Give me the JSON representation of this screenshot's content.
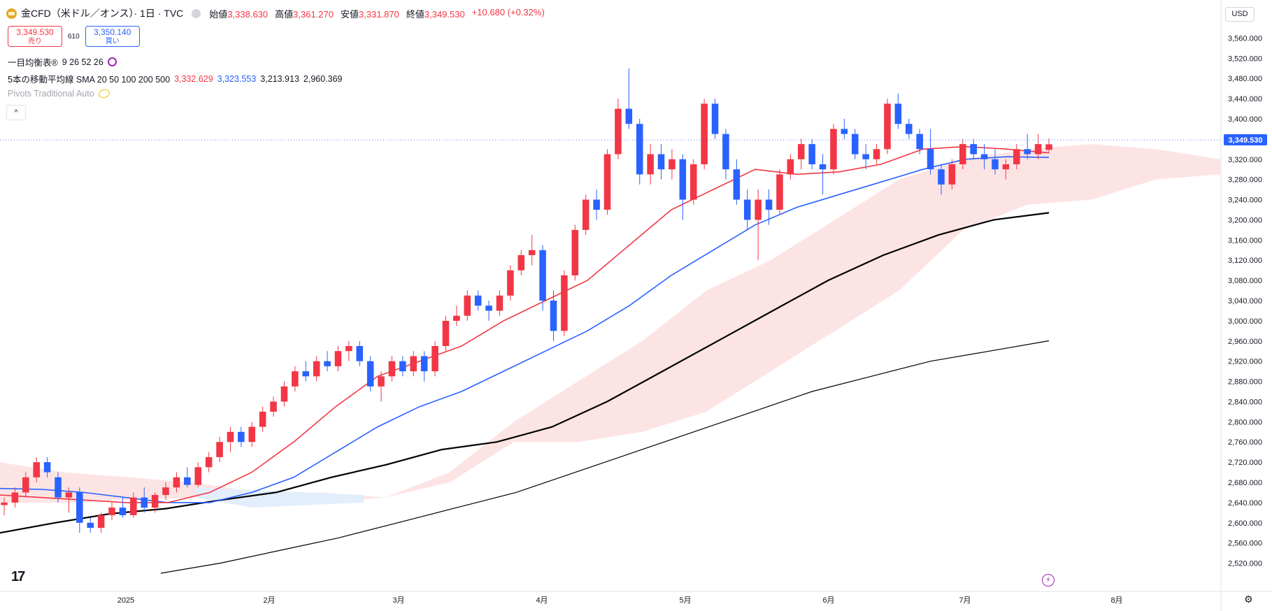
{
  "header": {
    "title": "金CFD（米ドル／オンス）· 1日 · TVC",
    "ohlc": [
      {
        "label": "始値",
        "value": "3,338.630"
      },
      {
        "label": "高値",
        "value": "3,361.270"
      },
      {
        "label": "安値",
        "value": "3,331.870"
      },
      {
        "label": "終値",
        "value": "3,349.530"
      }
    ],
    "change": "+10.680 (+0.32%)",
    "sell_price": "3,349.530",
    "sell_label": "売り",
    "spread": "610",
    "buy_price": "3,350.140",
    "buy_label": "買い"
  },
  "indicators": {
    "ichimoku_label": "一目均衡表®",
    "ichimoku_params": "9 26 52 26",
    "sma_label": "5本の移動平均線 SMA 20 50 100 200 500",
    "sma_values": [
      "3,332.629",
      "3,323.553",
      "3,213.913",
      "2,960.369"
    ],
    "pivots_label": "Pivots Traditional Auto"
  },
  "currency": "USD",
  "current_price_tag": "3,349.530",
  "icons": {
    "logo": "gold-logo-icon",
    "visibility": "eye-icon",
    "collapse": "chevron-up-icon",
    "tradingview": "tradingview-logo-icon",
    "lightning": "lightning-icon",
    "settings": "gear-icon"
  },
  "colors": {
    "up": "#f23645",
    "down": "#2962ff",
    "sma20": "#f23645",
    "sma50": "#2962ff",
    "sma100": "#000000",
    "sma200": "#000000",
    "cloud_bull": "#fde4e4",
    "cloud_bear": "#e3eefc"
  },
  "chart_data": {
    "type": "candlestick",
    "ylim": [
      2500,
      3580
    ],
    "y_ticks": [
      "3,560.000",
      "3,520.000",
      "3,480.000",
      "3,440.000",
      "3,400.000",
      "3,360.000",
      "3,320.000",
      "3,280.000",
      "3,240.000",
      "3,200.000",
      "3,160.000",
      "3,120.000",
      "3,080.000",
      "3,040.000",
      "3,000.000",
      "2,960.000",
      "2,920.000",
      "2,880.000",
      "2,840.000",
      "2,800.000",
      "2,760.000",
      "2,720.000",
      "2,680.000",
      "2,640.000",
      "2,600.000",
      "2,560.000",
      "2,520.000"
    ],
    "x_labels": [
      "2025",
      "2月",
      "3月",
      "4月",
      "5月",
      "6月",
      "7月",
      "8月"
    ],
    "sma20_values": [
      2655,
      2650,
      2645,
      2640,
      2640,
      2660,
      2700,
      2760,
      2830,
      2890,
      2920,
      2950,
      3000,
      3040,
      3080,
      3150,
      3220,
      3260,
      3300,
      3290,
      3295,
      3310,
      3340,
      3345,
      3340,
      3332.629
    ],
    "sma50_values": [
      2668,
      2666,
      2660,
      2650,
      2640,
      2640,
      2660,
      2690,
      2740,
      2790,
      2830,
      2860,
      2900,
      2940,
      2980,
      3030,
      3090,
      3140,
      3190,
      3225,
      3250,
      3275,
      3300,
      3320,
      3325,
      3323.553
    ],
    "sma100_values": [
      2580,
      2600,
      2618,
      2628,
      2645,
      2660,
      2690,
      2715,
      2745,
      2760,
      2790,
      2840,
      2900,
      2960,
      3020,
      3080,
      3130,
      3170,
      3200,
      3213.913
    ],
    "sma200_values": [
      2500,
      2520,
      2545,
      2570,
      2600,
      2630,
      2660,
      2700,
      2740,
      2780,
      2820,
      2860,
      2890,
      2920,
      2940,
      2960.369
    ],
    "ichimoku_cloud_top": [
      2720,
      2700,
      2690,
      2680,
      2660,
      2660,
      2650,
      2700,
      2800,
      2880,
      2960,
      3060,
      3120,
      3200,
      3280,
      3320,
      3340,
      3350,
      3340,
      3320
    ],
    "ichimoku_cloud_bottom": [
      2640,
      2640,
      2645,
      2650,
      2650,
      2640,
      2650,
      2680,
      2760,
      2760,
      2780,
      2820,
      2900,
      2980,
      3060,
      3180,
      3230,
      3240,
      3280,
      3290
    ],
    "candles": [
      [
        2635,
        2650,
        2615,
        2640
      ],
      [
        2640,
        2670,
        2630,
        2660
      ],
      [
        2660,
        2700,
        2650,
        2690
      ],
      [
        2690,
        2730,
        2680,
        2720
      ],
      [
        2720,
        2730,
        2690,
        2700
      ],
      [
        2690,
        2700,
        2640,
        2650
      ],
      [
        2650,
        2670,
        2620,
        2660
      ],
      [
        2660,
        2670,
        2580,
        2600
      ],
      [
        2600,
        2610,
        2580,
        2590
      ],
      [
        2590,
        2620,
        2580,
        2615
      ],
      [
        2615,
        2640,
        2605,
        2630
      ],
      [
        2630,
        2650,
        2610,
        2615
      ],
      [
        2615,
        2660,
        2610,
        2650
      ],
      [
        2650,
        2670,
        2620,
        2630
      ],
      [
        2630,
        2660,
        2620,
        2655
      ],
      [
        2655,
        2680,
        2645,
        2670
      ],
      [
        2670,
        2700,
        2660,
        2690
      ],
      [
        2690,
        2710,
        2670,
        2675
      ],
      [
        2675,
        2720,
        2670,
        2710
      ],
      [
        2710,
        2740,
        2700,
        2730
      ],
      [
        2730,
        2770,
        2720,
        2760
      ],
      [
        2760,
        2790,
        2740,
        2780
      ],
      [
        2780,
        2790,
        2750,
        2760
      ],
      [
        2760,
        2800,
        2750,
        2790
      ],
      [
        2790,
        2830,
        2780,
        2820
      ],
      [
        2820,
        2850,
        2810,
        2840
      ],
      [
        2840,
        2880,
        2830,
        2870
      ],
      [
        2870,
        2910,
        2860,
        2900
      ],
      [
        2900,
        2920,
        2880,
        2890
      ],
      [
        2890,
        2930,
        2880,
        2920
      ],
      [
        2920,
        2940,
        2900,
        2910
      ],
      [
        2910,
        2950,
        2900,
        2940
      ],
      [
        2940,
        2960,
        2920,
        2950
      ],
      [
        2950,
        2960,
        2910,
        2920
      ],
      [
        2920,
        2930,
        2860,
        2870
      ],
      [
        2870,
        2900,
        2840,
        2890
      ],
      [
        2890,
        2930,
        2880,
        2920
      ],
      [
        2920,
        2930,
        2890,
        2900
      ],
      [
        2900,
        2940,
        2890,
        2930
      ],
      [
        2930,
        2940,
        2880,
        2900
      ],
      [
        2900,
        2960,
        2890,
        2950
      ],
      [
        2950,
        3010,
        2940,
        3000
      ],
      [
        3000,
        3030,
        2990,
        3010
      ],
      [
        3010,
        3060,
        3000,
        3050
      ],
      [
        3050,
        3060,
        3020,
        3030
      ],
      [
        3030,
        3040,
        3000,
        3020
      ],
      [
        3020,
        3060,
        3010,
        3050
      ],
      [
        3050,
        3110,
        3040,
        3100
      ],
      [
        3100,
        3140,
        3090,
        3130
      ],
      [
        3130,
        3170,
        3110,
        3140
      ],
      [
        3140,
        3150,
        3020,
        3040
      ],
      [
        3040,
        3060,
        2960,
        2980
      ],
      [
        2980,
        3100,
        2970,
        3090
      ],
      [
        3090,
        3190,
        3080,
        3180
      ],
      [
        3180,
        3250,
        3170,
        3240
      ],
      [
        3240,
        3260,
        3200,
        3220
      ],
      [
        3220,
        3340,
        3210,
        3330
      ],
      [
        3330,
        3440,
        3320,
        3420
      ],
      [
        3420,
        3500,
        3380,
        3390
      ],
      [
        3390,
        3400,
        3270,
        3290
      ],
      [
        3290,
        3350,
        3270,
        3330
      ],
      [
        3330,
        3350,
        3280,
        3300
      ],
      [
        3300,
        3340,
        3280,
        3320
      ],
      [
        3320,
        3330,
        3200,
        3240
      ],
      [
        3240,
        3320,
        3230,
        3310
      ],
      [
        3310,
        3440,
        3300,
        3430
      ],
      [
        3430,
        3440,
        3360,
        3370
      ],
      [
        3370,
        3380,
        3280,
        3300
      ],
      [
        3300,
        3320,
        3230,
        3240
      ],
      [
        3240,
        3260,
        3180,
        3200
      ],
      [
        3200,
        3260,
        3120,
        3240
      ],
      [
        3240,
        3260,
        3190,
        3220
      ],
      [
        3220,
        3300,
        3210,
        3290
      ],
      [
        3290,
        3330,
        3280,
        3320
      ],
      [
        3320,
        3360,
        3300,
        3350
      ],
      [
        3350,
        3360,
        3300,
        3310
      ],
      [
        3310,
        3330,
        3250,
        3300
      ],
      [
        3300,
        3390,
        3290,
        3380
      ],
      [
        3380,
        3400,
        3360,
        3370
      ],
      [
        3370,
        3380,
        3320,
        3330
      ],
      [
        3330,
        3350,
        3300,
        3320
      ],
      [
        3320,
        3350,
        3310,
        3340
      ],
      [
        3340,
        3440,
        3330,
        3430
      ],
      [
        3430,
        3450,
        3380,
        3390
      ],
      [
        3390,
        3400,
        3360,
        3370
      ],
      [
        3370,
        3380,
        3330,
        3340
      ],
      [
        3340,
        3380,
        3290,
        3300
      ],
      [
        3300,
        3310,
        3250,
        3270
      ],
      [
        3270,
        3320,
        3260,
        3310
      ],
      [
        3310,
        3360,
        3300,
        3350
      ],
      [
        3350,
        3360,
        3320,
        3330
      ],
      [
        3330,
        3350,
        3300,
        3320
      ],
      [
        3320,
        3340,
        3290,
        3300
      ],
      [
        3300,
        3320,
        3280,
        3310
      ],
      [
        3310,
        3350,
        3300,
        3340
      ],
      [
        3340,
        3370,
        3320,
        3330
      ],
      [
        3330,
        3370,
        3320,
        3350
      ],
      [
        3338.63,
        3361.27,
        3331.87,
        3349.53
      ]
    ]
  }
}
